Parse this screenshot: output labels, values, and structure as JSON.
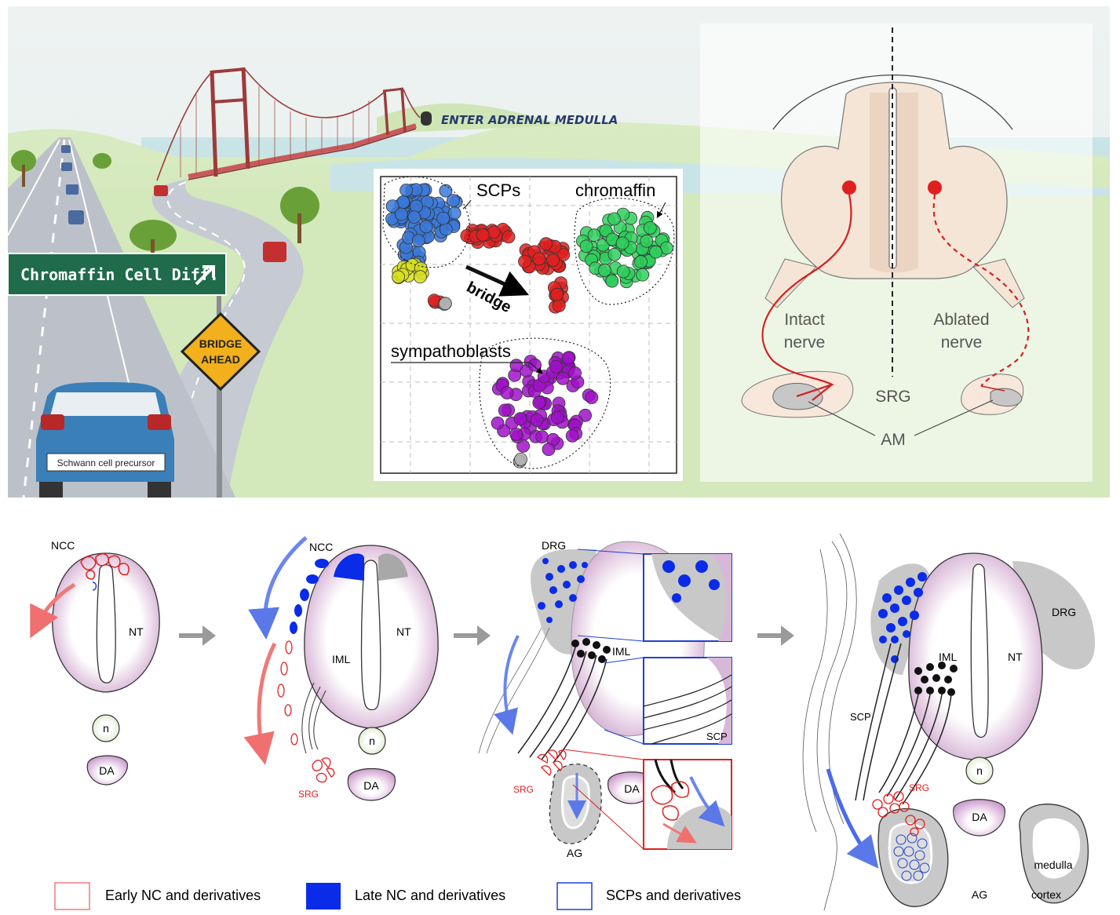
{
  "scene": {
    "tunnel_sign": "ENTER ADRENAL MEDULLA",
    "road_sign": "Chromaffin Cell Diff.",
    "warning_sign_line1": "BRIDGE",
    "warning_sign_line2": "AHEAD",
    "car_plate": "Schwann cell precursor"
  },
  "cluster_plot": {
    "label_scps": "SCPs",
    "label_chromaffin": "chromaffin",
    "label_bridge": "bridge",
    "label_sympathoblasts": "sympathoblasts",
    "colors": {
      "scps": "#3a78d8",
      "chromaffin": "#2fcf5c",
      "bridge": "#e02020",
      "sympathoblasts": "#a010c8",
      "yellow": "#d8e020",
      "gray": "#b0b0b0"
    }
  },
  "ablation": {
    "intact_line1": "Intact",
    "intact_line2": "nerve",
    "ablated_line1": "Ablated",
    "ablated_line2": "nerve",
    "srg": "SRG",
    "am": "AM"
  },
  "stages": {
    "s1": {
      "ncc": "NCC",
      "nt": "NT",
      "n": "n",
      "da": "DA"
    },
    "s2": {
      "ncc": "NCC",
      "nt": "NT",
      "iml": "IML",
      "n": "n",
      "da": "DA",
      "srg": "SRG"
    },
    "s3": {
      "drg": "DRG",
      "iml": "IML",
      "scp": "SCP",
      "srg": "SRG",
      "da": "DA",
      "ag": "AG"
    },
    "s4": {
      "drg": "DRG",
      "nt": "NT",
      "iml": "IML",
      "scp": "SCP",
      "srg": "SRG",
      "n": "n",
      "da": "DA",
      "ag": "AG",
      "medulla": "medulla",
      "cortex": "cortex"
    }
  },
  "legend": {
    "early": "Early NC and derivatives",
    "late": "Late NC and derivatives",
    "scps": "SCPs and derivatives"
  }
}
